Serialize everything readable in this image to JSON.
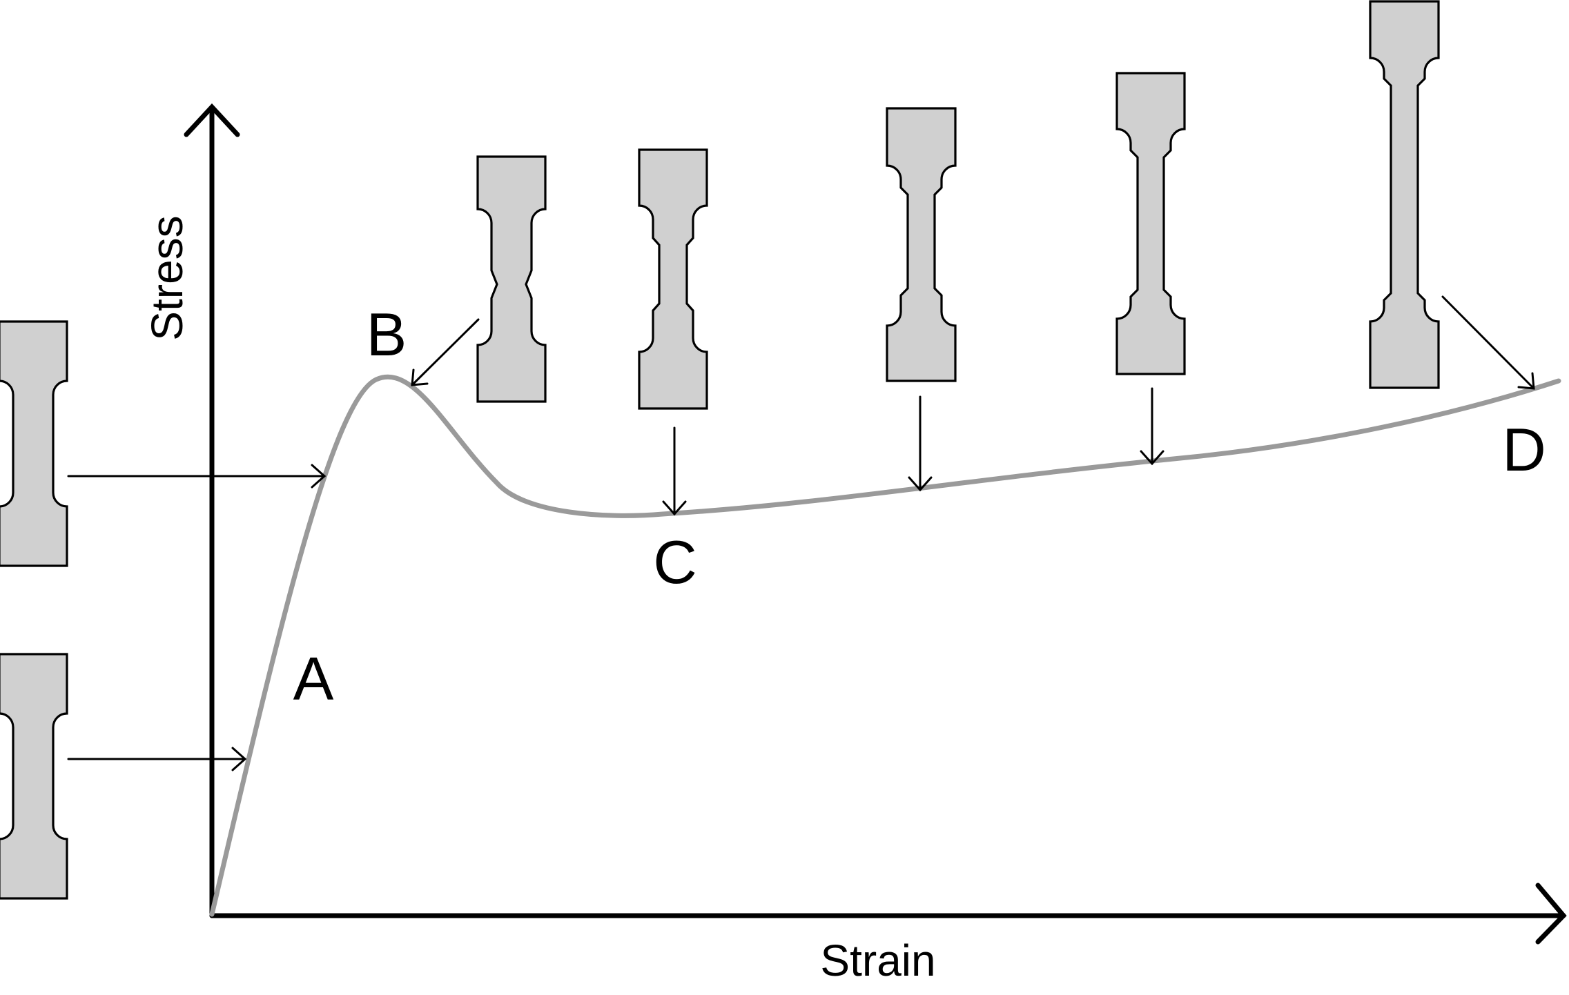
{
  "axes": {
    "x_label": "Strain",
    "y_label": "Stress"
  },
  "points": {
    "a": "A",
    "b": "B",
    "c": "C",
    "d": "D"
  },
  "colors": {
    "curve": "#9a9a9a",
    "specimen_fill": "#d0d0d0",
    "outline": "#000000"
  }
}
